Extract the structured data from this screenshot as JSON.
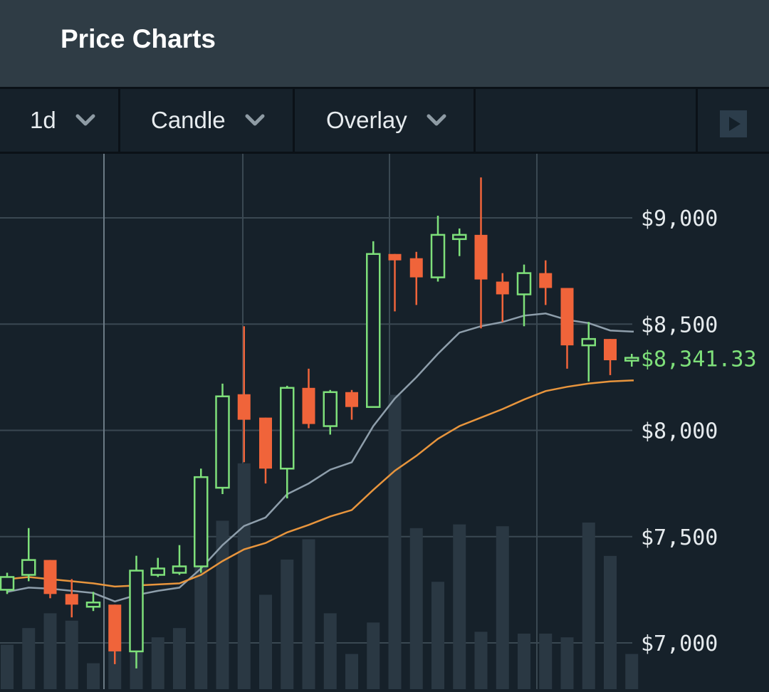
{
  "header": {
    "title": "Price Charts"
  },
  "toolbar": {
    "interval": "1d",
    "chart_type": "Candle",
    "overlay": "Overlay",
    "play_icon": "play-icon"
  },
  "colors": {
    "up": "#7ee07a",
    "down": "#f0643a",
    "ma_short": "#8e9eab",
    "ma_long": "#e8953d",
    "volume": "#2a3843",
    "grid": "#3a4852",
    "background": "#16212a"
  },
  "chart_data": {
    "type": "candlestick",
    "title": "",
    "ylim": [
      6880,
      9500
    ],
    "y_ticks": [
      7000,
      7500,
      8000,
      8500,
      9000
    ],
    "y_tick_labels": [
      "$7,000",
      "$7,500",
      "$8,000",
      "$8,500",
      "$9,000"
    ],
    "last_price": 8341.33,
    "last_price_label": "$8,341.33",
    "candles": [
      {
        "o": 7250,
        "h": 7330,
        "l": 7230,
        "c": 7310
      },
      {
        "o": 7320,
        "h": 7540,
        "l": 7290,
        "c": 7390
      },
      {
        "o": 7390,
        "h": 7390,
        "l": 7210,
        "c": 7230
      },
      {
        "o": 7230,
        "h": 7300,
        "l": 7120,
        "c": 7180
      },
      {
        "o": 7170,
        "h": 7240,
        "l": 7150,
        "c": 7190
      },
      {
        "o": 7180,
        "h": 7180,
        "l": 6900,
        "c": 6960
      },
      {
        "o": 6960,
        "h": 7410,
        "l": 6880,
        "c": 7340
      },
      {
        "o": 7320,
        "h": 7400,
        "l": 7310,
        "c": 7350
      },
      {
        "o": 7330,
        "h": 7460,
        "l": 7320,
        "c": 7360
      },
      {
        "o": 7360,
        "h": 7820,
        "l": 7330,
        "c": 7780
      },
      {
        "o": 7730,
        "h": 8220,
        "l": 7700,
        "c": 8160
      },
      {
        "o": 8170,
        "h": 8490,
        "l": 7850,
        "c": 8050
      },
      {
        "o": 8060,
        "h": 8060,
        "l": 7750,
        "c": 7820
      },
      {
        "o": 7820,
        "h": 8210,
        "l": 7680,
        "c": 8200
      },
      {
        "o": 8200,
        "h": 8290,
        "l": 8010,
        "c": 8030
      },
      {
        "o": 8020,
        "h": 8190,
        "l": 7980,
        "c": 8180
      },
      {
        "o": 8180,
        "h": 8190,
        "l": 8050,
        "c": 8110
      },
      {
        "o": 8110,
        "h": 8890,
        "l": 8110,
        "c": 8830
      },
      {
        "o": 8830,
        "h": 8830,
        "l": 8560,
        "c": 8800
      },
      {
        "o": 8810,
        "h": 8840,
        "l": 8590,
        "c": 8720
      },
      {
        "o": 8720,
        "h": 9010,
        "l": 8700,
        "c": 8920
      },
      {
        "o": 8900,
        "h": 8950,
        "l": 8820,
        "c": 8920
      },
      {
        "o": 8920,
        "h": 9190,
        "l": 8480,
        "c": 8710
      },
      {
        "o": 8700,
        "h": 8740,
        "l": 8510,
        "c": 8640
      },
      {
        "o": 8640,
        "h": 8780,
        "l": 8490,
        "c": 8740
      },
      {
        "o": 8740,
        "h": 8800,
        "l": 8590,
        "c": 8670
      },
      {
        "o": 8670,
        "h": 8670,
        "l": 8290,
        "c": 8400
      },
      {
        "o": 8400,
        "h": 8510,
        "l": 8230,
        "c": 8430
      },
      {
        "o": 8430,
        "h": 8430,
        "l": 8260,
        "c": 8330
      },
      {
        "o": 8330,
        "h": 8360,
        "l": 8300,
        "c": 8341.33
      }
    ],
    "ma_short": [
      7240,
      7260,
      7255,
      7245,
      7235,
      7195,
      7225,
      7245,
      7260,
      7350,
      7460,
      7550,
      7590,
      7700,
      7750,
      7815,
      7850,
      8020,
      8150,
      8250,
      8360,
      8460,
      8490,
      8510,
      8540,
      8550,
      8520,
      8505,
      8470,
      8465
    ],
    "ma_long": [
      7300,
      7310,
      7300,
      7290,
      7280,
      7265,
      7270,
      7275,
      7280,
      7320,
      7385,
      7440,
      7470,
      7520,
      7555,
      7595,
      7625,
      7720,
      7810,
      7880,
      7960,
      8020,
      8060,
      8100,
      8145,
      8185,
      8205,
      8220,
      8230,
      8235
    ],
    "volume": [
      0.24,
      0.33,
      0.41,
      0.37,
      0.14,
      0.33,
      0.24,
      0.28,
      0.33,
      0.67,
      0.91,
      1.22,
      0.51,
      0.7,
      0.81,
      0.41,
      0.19,
      0.36,
      1.59,
      0.87,
      0.58,
      0.89,
      0.31,
      0.88,
      0.3,
      0.3,
      0.28,
      0.9,
      0.72,
      0.19
    ]
  }
}
